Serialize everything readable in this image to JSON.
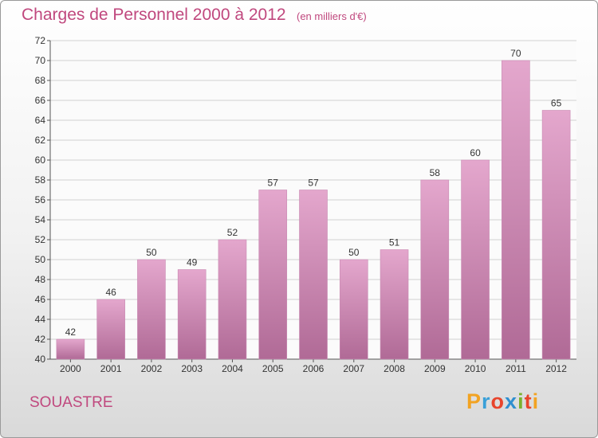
{
  "title": "Charges de Personnel 2000 à 2012",
  "subtitle": "(en milliers d'€)",
  "commune": "SOUASTRE",
  "logo": {
    "text": "Proxiti",
    "colors": [
      "#f2a322",
      "#3aa0d8",
      "#e8452c",
      "#2f8fd0",
      "#7ab22e",
      "#e8452c",
      "#f2a322"
    ]
  },
  "colors": {
    "bar_top": "#e4a7cd",
    "bar_bottom": "#b06a96",
    "text": "#c0487e",
    "grid": "#d2d2d2"
  },
  "chart_data": {
    "type": "bar",
    "categories": [
      "2000",
      "2001",
      "2002",
      "2003",
      "2004",
      "2005",
      "2006",
      "2007",
      "2008",
      "2009",
      "2010",
      "2011",
      "2012"
    ],
    "values": [
      42,
      46,
      50,
      49,
      52,
      57,
      57,
      50,
      51,
      58,
      60,
      70,
      65
    ],
    "ylim": [
      40,
      72
    ],
    "yticks": [
      40,
      42,
      44,
      46,
      48,
      50,
      52,
      54,
      56,
      58,
      60,
      62,
      64,
      66,
      68,
      70,
      72
    ],
    "grid": true
  }
}
